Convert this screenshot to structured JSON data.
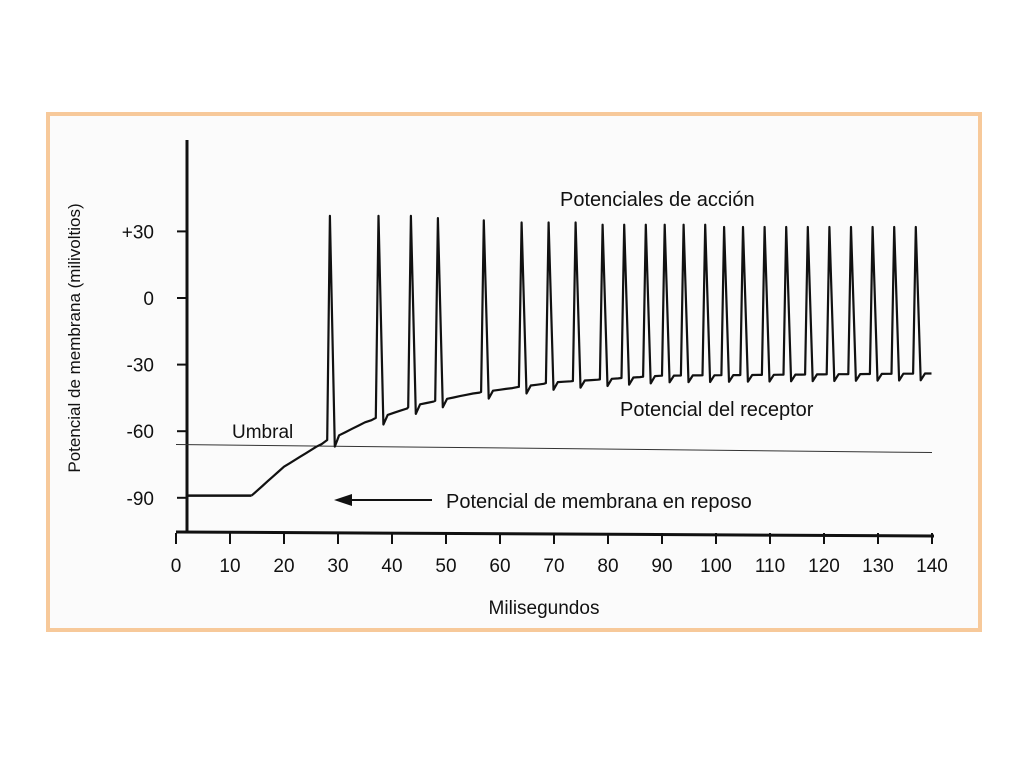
{
  "colors": {
    "frame_border": "#f7c99a",
    "ink": "#111111"
  },
  "chart_data": {
    "type": "line",
    "xlabel": "Milisegundos",
    "ylabel": "Potencial de membrana (milivoltios)",
    "x_ticks": [
      0,
      10,
      20,
      30,
      40,
      50,
      60,
      70,
      80,
      90,
      100,
      110,
      120,
      130,
      140
    ],
    "y_ticks": [
      {
        "value": 30,
        "label": "+30"
      },
      {
        "value": 0,
        "label": "0"
      },
      {
        "value": -30,
        "label": "-30"
      },
      {
        "value": -60,
        "label": "-60"
      },
      {
        "value": -90,
        "label": "-90"
      }
    ],
    "x_range": [
      0,
      140
    ],
    "y_range": [
      -105,
      65
    ],
    "grid": false,
    "threshold": {
      "label": "Umbral",
      "value": -66
    },
    "annotations": {
      "action_potentials": "Potenciales de acción",
      "receptor_potential": "Potencial del receptor",
      "resting_potential": "Potencial de membrana en reposo"
    },
    "resting": {
      "value": -89,
      "x_start": 2,
      "x_end": 14
    },
    "receptor_potential": [
      {
        "x": 14,
        "y": -89
      },
      {
        "x": 20,
        "y": -76
      },
      {
        "x": 26,
        "y": -67
      },
      {
        "x": 35,
        "y": -56
      },
      {
        "x": 45,
        "y": -48
      },
      {
        "x": 55,
        "y": -43
      },
      {
        "x": 70,
        "y": -38
      },
      {
        "x": 90,
        "y": -35
      },
      {
        "x": 140,
        "y": -34
      }
    ],
    "spike_peaks": [
      {
        "x": 28.5,
        "y": 37
      },
      {
        "x": 37.5,
        "y": 37
      },
      {
        "x": 43.5,
        "y": 37
      },
      {
        "x": 48.5,
        "y": 36
      },
      {
        "x": 57,
        "y": 35
      },
      {
        "x": 64,
        "y": 34
      },
      {
        "x": 69,
        "y": 34
      },
      {
        "x": 74,
        "y": 34
      },
      {
        "x": 79,
        "y": 33
      },
      {
        "x": 83,
        "y": 33
      },
      {
        "x": 87,
        "y": 33
      },
      {
        "x": 90.5,
        "y": 33
      },
      {
        "x": 94,
        "y": 33
      },
      {
        "x": 98,
        "y": 33
      },
      {
        "x": 101.5,
        "y": 32
      },
      {
        "x": 105,
        "y": 32
      },
      {
        "x": 109,
        "y": 32
      },
      {
        "x": 113,
        "y": 32
      },
      {
        "x": 117,
        "y": 32
      },
      {
        "x": 121,
        "y": 32
      },
      {
        "x": 125,
        "y": 32
      },
      {
        "x": 129,
        "y": 32
      },
      {
        "x": 133,
        "y": 32
      },
      {
        "x": 137,
        "y": 32
      }
    ]
  }
}
